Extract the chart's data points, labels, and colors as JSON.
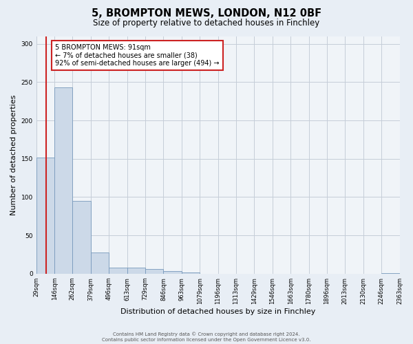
{
  "title": "5, BROMPTON MEWS, LONDON, N12 0BF",
  "subtitle": "Size of property relative to detached houses in Finchley",
  "xlabel": "Distribution of detached houses by size in Finchley",
  "ylabel": "Number of detached properties",
  "bin_edges": [
    29,
    146,
    262,
    379,
    496,
    613,
    729,
    846,
    963,
    1079,
    1196,
    1313,
    1429,
    1546,
    1663,
    1780,
    1896,
    2013,
    2130,
    2246,
    2363
  ],
  "bin_labels": [
    "29sqm",
    "146sqm",
    "262sqm",
    "379sqm",
    "496sqm",
    "613sqm",
    "729sqm",
    "846sqm",
    "963sqm",
    "1079sqm",
    "1196sqm",
    "1313sqm",
    "1429sqm",
    "1546sqm",
    "1663sqm",
    "1780sqm",
    "1896sqm",
    "2013sqm",
    "2130sqm",
    "2246sqm",
    "2363sqm"
  ],
  "bar_heights": [
    152,
    243,
    95,
    28,
    8,
    8,
    6,
    3,
    2,
    0,
    0,
    0,
    0,
    0,
    0,
    0,
    0,
    0,
    0,
    1
  ],
  "bar_color": "#ccd9e8",
  "bar_edge_color": "#7799bb",
  "property_value": 91,
  "vline_color": "#cc2222",
  "annotation_text": "5 BROMPTON MEWS: 91sqm\n← 7% of detached houses are smaller (38)\n92% of semi-detached houses are larger (494) →",
  "annotation_box_color": "#ffffff",
  "annotation_box_edge_color": "#cc2222",
  "ylim": [
    0,
    310
  ],
  "yticks": [
    0,
    50,
    100,
    150,
    200,
    250,
    300
  ],
  "footer_line1": "Contains HM Land Registry data © Crown copyright and database right 2024.",
  "footer_line2": "Contains public sector information licensed under the Open Government Licence v3.0.",
  "bg_color": "#e8eef5",
  "plot_bg_color": "#f0f4f8",
  "grid_color": "#c5cdd8",
  "title_fontsize": 10.5,
  "subtitle_fontsize": 8.5,
  "ylabel_fontsize": 8,
  "xlabel_fontsize": 8,
  "tick_fontsize": 6,
  "annotation_fontsize": 7,
  "footer_fontsize": 5
}
